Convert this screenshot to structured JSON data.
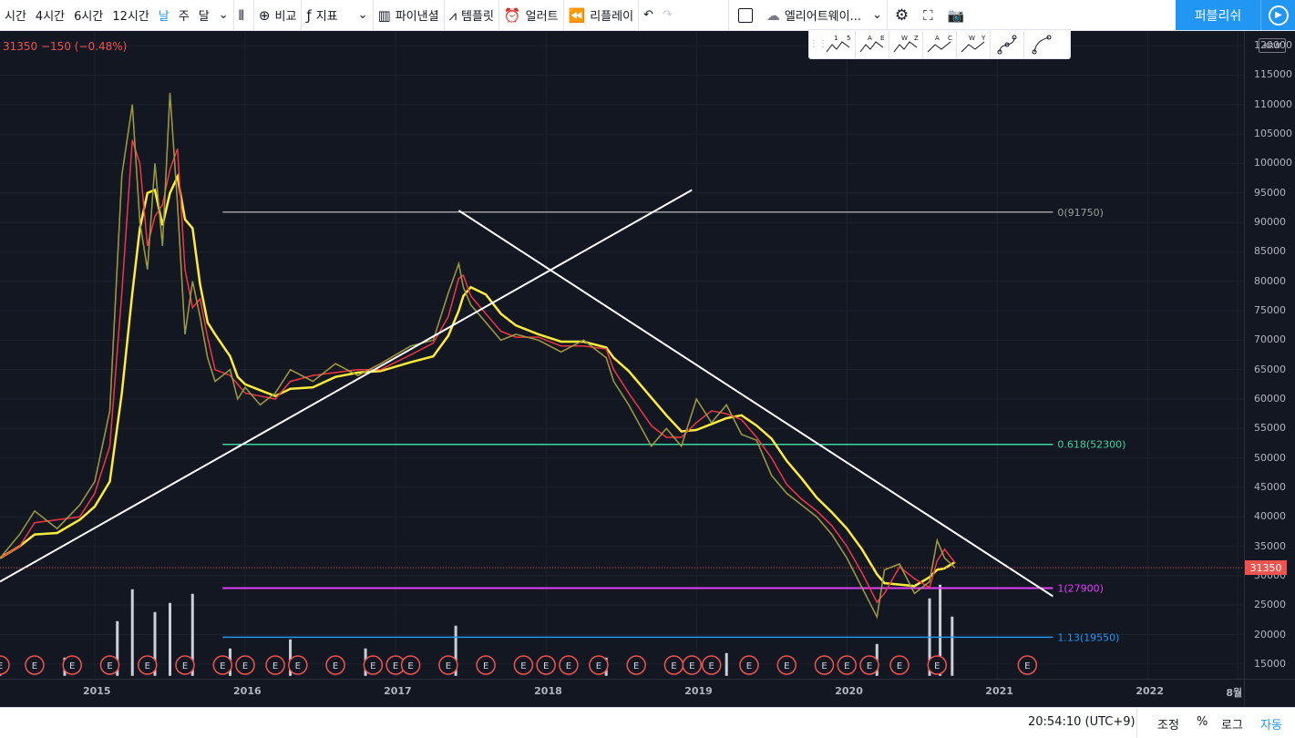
{
  "toolbar": {
    "intervals": [
      "시간",
      "4시간",
      "6시간",
      "12시간",
      "날",
      "주",
      "달"
    ],
    "active_interval": "날",
    "compare_label": "비교",
    "indicators_label": "지표",
    "financials_label": "파이낸셜",
    "templates_label": "템플릿",
    "alert_label": "얼러트",
    "replay_label": "리플레이",
    "layout_name": "엘리어트웨이...",
    "publish_label": "퍼블리쉬"
  },
  "elliott_tools": [
    {
      "labels": [
        "1",
        "5"
      ]
    },
    {
      "labels": [
        "A",
        "E"
      ]
    },
    {
      "labels": [
        "W",
        "Z"
      ]
    },
    {
      "labels": [
        "A",
        "C"
      ]
    },
    {
      "labels": [
        "W",
        "Y"
      ]
    },
    {
      "labels": [
        "",
        ""
      ]
    },
    {
      "labels": [
        "",
        ""
      ]
    }
  ],
  "legend": {
    "text": "31350  −150  (−0.48%)"
  },
  "currency_badge": "KRW",
  "bottom_bar": {
    "clock": "20:54:10 (UTC+9)",
    "adjust_label": "조정",
    "percent_label": "%",
    "log_label": "로그",
    "auto_label": "자동"
  },
  "colors": {
    "background": "#131722",
    "up": "#26a69a",
    "down": "#ef5350",
    "ma_fast": "#ff9800",
    "ma_mid": "#f23645",
    "ma_slow": "#ffeb3b",
    "trendline": "#ffffff",
    "fib0": "#9e9e9e",
    "fib618": "#3dd6a0",
    "fib1": "#e040fb",
    "fib113": "#2196f3"
  },
  "chart_data": {
    "type": "line",
    "currency": "KRW",
    "last_price": 31350,
    "change": -150,
    "change_percent": -0.48,
    "x_ticks": [
      "2015",
      "2016",
      "2017",
      "2018",
      "2019",
      "2020",
      "2021",
      "2022",
      "8월"
    ],
    "y_ticks": [
      15000,
      20000,
      25000,
      30000,
      35000,
      40000,
      45000,
      50000,
      55000,
      60000,
      65000,
      70000,
      75000,
      80000,
      85000,
      90000,
      95000,
      100000,
      105000,
      110000,
      115000,
      120000
    ],
    "ylim": [
      12500,
      122500
    ],
    "xlim": [
      2014.37,
      2022.64
    ],
    "price_series": {
      "x": [
        2014.37,
        2014.5,
        2014.6,
        2014.75,
        2014.9,
        2015.0,
        2015.1,
        2015.18,
        2015.25,
        2015.3,
        2015.35,
        2015.4,
        2015.45,
        2015.5,
        2015.55,
        2015.6,
        2015.65,
        2015.7,
        2015.75,
        2015.8,
        2015.9,
        2015.95,
        2016.0,
        2016.1,
        2016.2,
        2016.3,
        2016.45,
        2016.6,
        2016.75,
        2016.9,
        2017.1,
        2017.25,
        2017.35,
        2017.42,
        2017.45,
        2017.5,
        2017.6,
        2017.7,
        2017.8,
        2017.95,
        2018.1,
        2018.25,
        2018.4,
        2018.45,
        2018.55,
        2018.7,
        2018.8,
        2018.9,
        2019.0,
        2019.1,
        2019.2,
        2019.3,
        2019.4,
        2019.5,
        2019.6,
        2019.7,
        2019.8,
        2019.9,
        2020.0,
        2020.1,
        2020.2,
        2020.25,
        2020.35,
        2020.45,
        2020.55,
        2020.6,
        2020.65,
        2020.72
      ],
      "y": [
        33000,
        37000,
        41000,
        38000,
        42000,
        46000,
        58000,
        98000,
        110000,
        90000,
        82000,
        100000,
        86000,
        112000,
        93000,
        71000,
        80000,
        74000,
        67000,
        63000,
        65000,
        60000,
        62000,
        59000,
        61000,
        65000,
        63000,
        66000,
        64000,
        66000,
        69000,
        70000,
        78000,
        83000,
        79000,
        76000,
        73000,
        70000,
        71000,
        70000,
        68000,
        70000,
        67000,
        63000,
        59000,
        52000,
        55000,
        52000,
        60000,
        56000,
        59000,
        54000,
        53000,
        47000,
        44000,
        42000,
        40000,
        37000,
        33000,
        28000,
        23000,
        31000,
        32000,
        27000,
        29000,
        36000,
        33000,
        31350
      ]
    },
    "trendlines": [
      {
        "x": [
          2014.37,
          2018.97
        ],
        "y": [
          29000,
          95500
        ]
      },
      {
        "x": [
          2017.42,
          2021.37
        ],
        "y": [
          92000,
          26500
        ]
      }
    ],
    "fib_levels": [
      {
        "label": "0(91750)",
        "value": 91750
      },
      {
        "label": "0.618(52300)",
        "value": 52300
      },
      {
        "label": "1(27900)",
        "value": 27900
      },
      {
        "label": "1.13(19550)",
        "value": 19550
      }
    ],
    "fib_x_range": [
      2015.85,
      2021.37
    ],
    "earnings_marker": "E",
    "earnings_x": [
      2014.37,
      2014.6,
      2014.85,
      2015.1,
      2015.35,
      2015.6,
      2015.85,
      2016.0,
      2016.2,
      2016.35,
      2016.6,
      2016.85,
      2017.0,
      2017.1,
      2017.35,
      2017.6,
      2017.85,
      2018.0,
      2018.15,
      2018.35,
      2018.6,
      2018.85,
      2018.97,
      2019.1,
      2019.35,
      2019.6,
      2019.85,
      2020.0,
      2020.15,
      2020.35,
      2020.6,
      2021.2
    ],
    "volume": {
      "x": [
        2014.37,
        2014.8,
        2015.15,
        2015.25,
        2015.4,
        2015.5,
        2015.65,
        2015.9,
        2016.3,
        2016.8,
        2017.4,
        2018.4,
        2019.2,
        2020.2,
        2020.55,
        2020.62,
        2020.7
      ],
      "y": [
        0.15,
        0.2,
        0.6,
        0.95,
        0.7,
        0.8,
        0.9,
        0.3,
        0.4,
        0.3,
        0.55,
        0.2,
        0.25,
        0.35,
        0.85,
        1.0,
        0.65
      ]
    }
  }
}
